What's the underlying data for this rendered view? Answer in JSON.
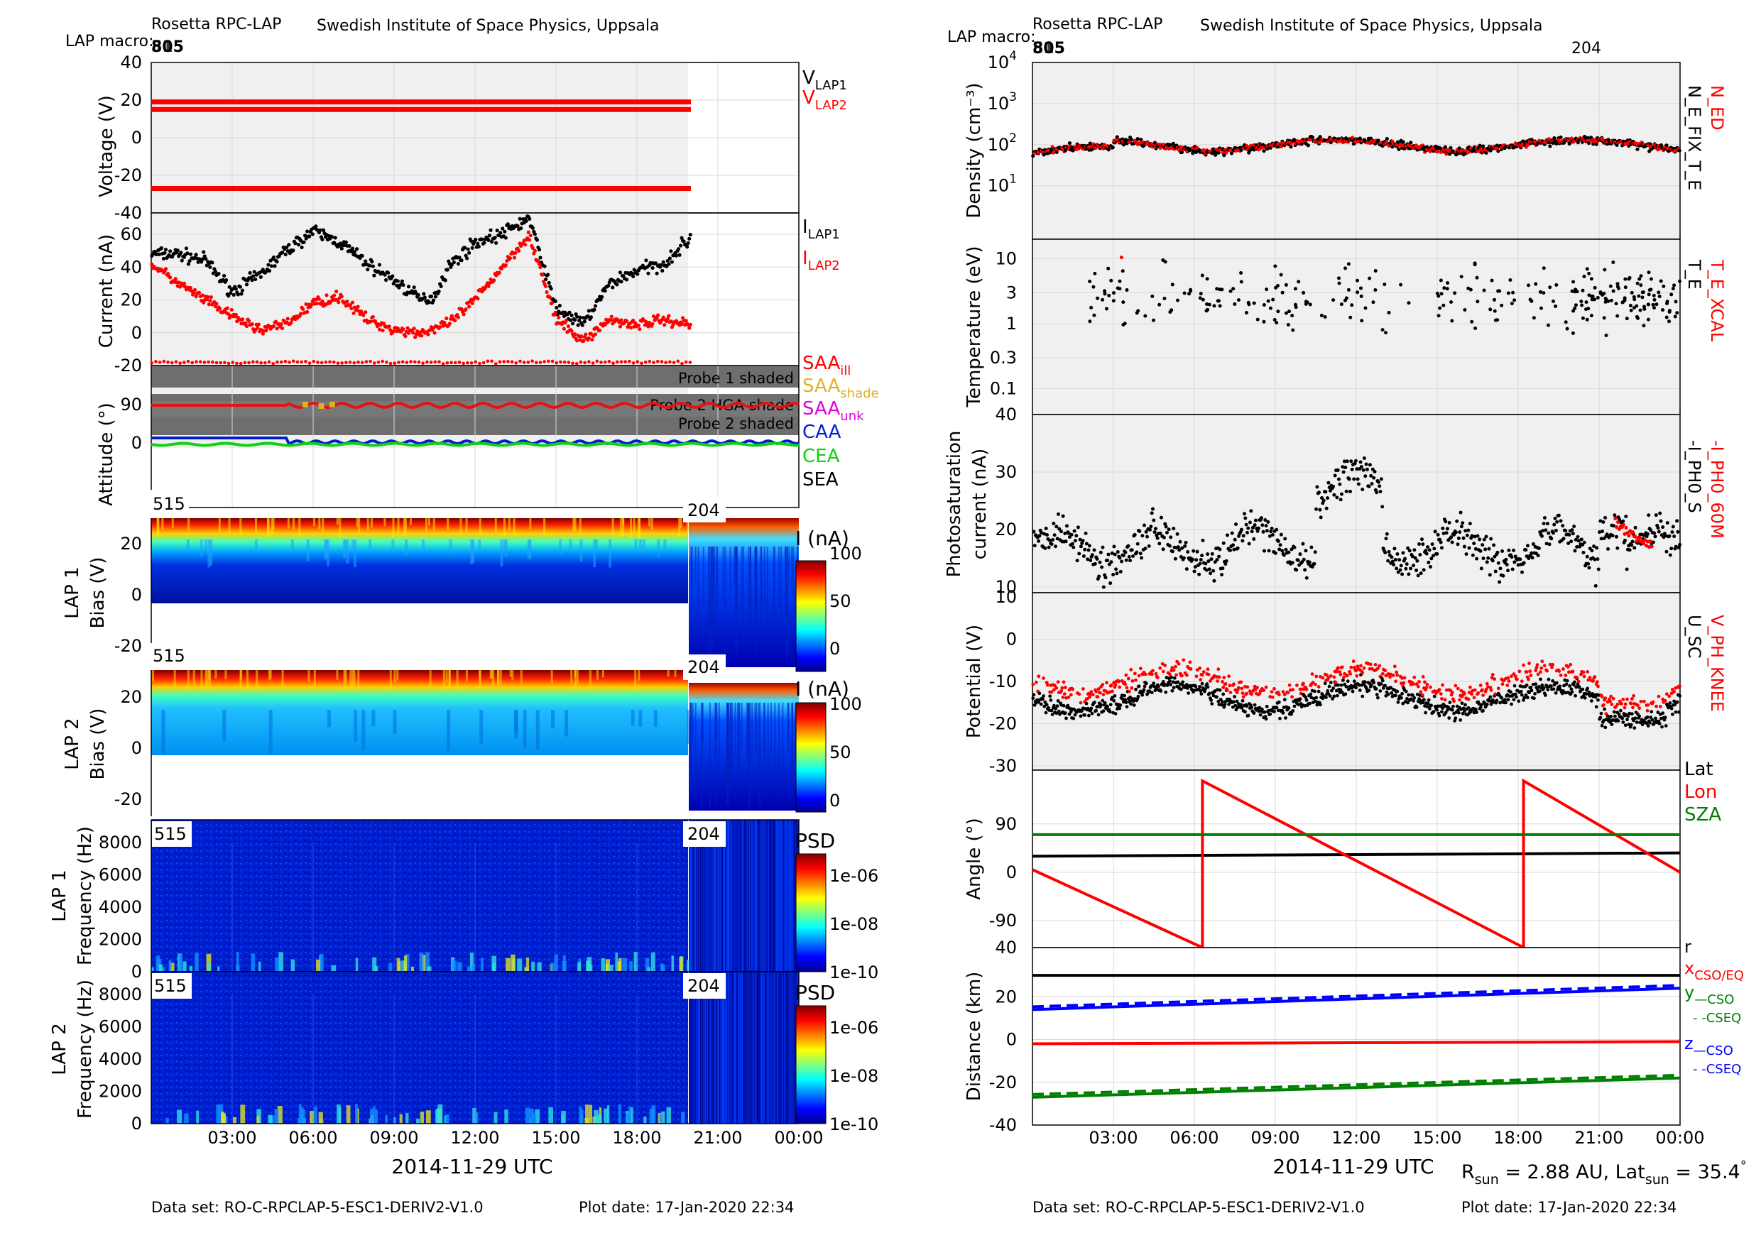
{
  "left": {
    "header": {
      "instrument": "Rosetta RPC-LAP",
      "institute": "Swedish Institute of Space Physics, Uppsala",
      "macro_label": "LAP macro:",
      "macro_values": "80⁄15",
      "macro_a": "805",
      "macro_b": "515"
    },
    "xlabel": "2014-11-29 UTC",
    "xticks": [
      "03:00",
      "06:00",
      "09:00",
      "12:00",
      "15:00",
      "18:00",
      "21:00",
      "00:00"
    ],
    "footer_dataset": "Data set: RO-C-RPCLAP-5-ESC1-DERIV2-V1.0",
    "footer_plotdate": "Plot date: 17-Jan-2020 22:34",
    "panels": {
      "voltage": {
        "ylabel": "Voltage (V)",
        "yticks": [
          "40",
          "20",
          "0",
          "-20",
          "-40"
        ],
        "legend1": "V",
        "legend1_sub": "LAP1",
        "legend2": "V",
        "legend2_sub": "LAP2"
      },
      "current": {
        "ylabel": "Current (nA)",
        "yticks": [
          "60",
          "40",
          "20",
          "0",
          "-20"
        ],
        "legend1": "I",
        "legend1_sub": "LAP1",
        "legend2": "I",
        "legend2_sub": "LAP2"
      },
      "attitude": {
        "ylabel": "Attitude (°)",
        "yticks": [
          "90",
          "0"
        ],
        "shade1": "Probe 1 shaded",
        "shade2": "Probe 2 HGA shade",
        "shade3": "Probe 2 shaded",
        "saa_ill": "SAA",
        "saa_ill_sub": "ill",
        "saa_shade": "SAA",
        "saa_shade_sub": "shade",
        "saa_unk": "SAA",
        "saa_unk_sub": "unk",
        "caa": "CAA",
        "cea": "CEA",
        "sea": "SEA"
      },
      "bias1": {
        "ylabel1": "LAP 1",
        "ylabel2": "Bias (V)",
        "yticks": [
          "20",
          "0",
          "-20"
        ],
        "macro_left": "515",
        "macro_right": "204",
        "cbar_title": "I (nA)",
        "cbar_ticks": [
          "100",
          "50",
          "0"
        ]
      },
      "bias2": {
        "ylabel1": "LAP 2",
        "ylabel2": "Bias (V)",
        "yticks": [
          "20",
          "0",
          "-20"
        ],
        "macro_left": "515",
        "macro_right": "204",
        "cbar_title": "I (nA)",
        "cbar_ticks": [
          "100",
          "50",
          "0"
        ]
      },
      "freq1": {
        "ylabel1": "LAP 1",
        "ylabel2": "Frequency (Hz)",
        "yticks": [
          "8000",
          "6000",
          "4000",
          "2000",
          "0"
        ],
        "macro_left": "515",
        "macro_right": "204",
        "cbar_title": "PSD",
        "cbar_ticks": [
          "1e-06",
          "1e-08",
          "1e-10"
        ]
      },
      "freq2": {
        "ylabel1": "LAP 2",
        "ylabel2": "Frequency (Hz)",
        "yticks": [
          "8000",
          "6000",
          "4000",
          "2000",
          "0"
        ],
        "macro_left": "515",
        "macro_right": "204",
        "cbar_title": "PSD",
        "cbar_ticks": [
          "1e-06",
          "1e-08",
          "1e-10"
        ]
      }
    }
  },
  "right": {
    "header": {
      "instrument": "Rosetta RPC-LAP",
      "institute": "Swedish Institute of Space Physics, Uppsala",
      "macro_label": "LAP macro:",
      "macro_a": "805",
      "macro_b": "515",
      "macro_right": "204"
    },
    "xlabel": "2014-11-29 UTC",
    "xticks": [
      "03:00",
      "06:00",
      "09:00",
      "12:00",
      "15:00",
      "18:00",
      "21:00",
      "00:00"
    ],
    "footer_dataset": "Data set: RO-C-RPCLAP-5-ESC1-DERIV2-V1.0",
    "footer_plotdate": "Plot date: 17-Jan-2020 22:34",
    "rsun_text": "R",
    "rsun_sub": "sun",
    "rsun_value": " = 2.88 AU, Lat",
    "lat_sub": "sun",
    "lat_value": " = 35.4",
    "lat_deg": "°",
    "panels": {
      "density": {
        "ylabel": "Density (cm⁻³)",
        "yticks_base": "10",
        "yticks_exp": [
          "4",
          "3",
          "2",
          "1"
        ],
        "label_red": "N_ED",
        "label_black": "N_E_FIX_T_E"
      },
      "temperature": {
        "ylabel": "Temperature (eV)",
        "yticks": [
          "10",
          "3",
          "1",
          "0.3",
          "0.1"
        ],
        "label_red": "T_E_XCAL",
        "label_black": "T_E"
      },
      "photosat": {
        "ylabel1": "Photosaturation",
        "ylabel2": "current (nA)",
        "yticks": [
          "40",
          "30",
          "20",
          "10"
        ],
        "label_red": "-I_PH0_60M",
        "label_black": "-I_PH0_S"
      },
      "potential": {
        "ylabel": "Potential (V)",
        "yticks": [
          "10",
          "0",
          "-10",
          "-20",
          "-30"
        ],
        "label_red": "V_PH_KNEE",
        "label_black": "U_SC"
      },
      "angle": {
        "ylabel": "Angle (°)",
        "yticks": [
          "90",
          "0",
          "-90",
          "40"
        ],
        "lat": "Lat",
        "lon": "Lon",
        "sza": "SZA"
      },
      "distance": {
        "ylabel": "Distance (km)",
        "yticks": [
          "20",
          "0",
          "-20",
          "-40"
        ],
        "r": "r",
        "x": "x",
        "x_sub": "CSO/EQ",
        "y": "y",
        "y_sub": "—CSO",
        "y_sub2": "- -CSEQ",
        "z": "z",
        "z_sub": "—CSO",
        "z_sub2": "- -CSEQ"
      }
    }
  },
  "chart_data": [
    {
      "type": "line",
      "title": "Voltage",
      "xlabel": "2014-11-29 UTC",
      "ylabel": "Voltage (V)",
      "ylim": [
        -40,
        40
      ],
      "x_range_hours": [
        0,
        24
      ],
      "series": [
        {
          "name": "V_LAP1",
          "color": "#ff0000",
          "x": [
            0,
            20
          ],
          "y": [
            19,
            19
          ]
        },
        {
          "name": "V_LAP2",
          "color": "#ff0000",
          "x": [
            0,
            20
          ],
          "y": [
            15,
            15
          ]
        },
        {
          "name": "V_LAP2",
          "color": "#ff0000",
          "x": [
            0,
            20
          ],
          "y": [
            -27,
            -27
          ]
        }
      ]
    },
    {
      "type": "scatter",
      "title": "Current",
      "xlabel": "2014-11-29 UTC",
      "ylabel": "Current (nA)",
      "ylim": [
        -20,
        75
      ],
      "series": [
        {
          "name": "I_LAP1",
          "color": "#000000",
          "x": [
            0,
            1,
            2,
            3,
            4,
            5,
            6,
            7,
            8,
            9,
            10,
            10.5,
            11,
            12,
            13,
            14,
            15,
            16,
            17,
            18,
            19,
            20
          ],
          "y": [
            48,
            48,
            44,
            25,
            35,
            50,
            62,
            55,
            42,
            32,
            20,
            22,
            40,
            55,
            60,
            70,
            15,
            5,
            30,
            38,
            42,
            58
          ]
        },
        {
          "name": "I_LAP2",
          "color": "#ff0000",
          "x": [
            0,
            1,
            2,
            3,
            4,
            5,
            6,
            7,
            8,
            9,
            10,
            11,
            12,
            13,
            14,
            15,
            16,
            17,
            18,
            19,
            20
          ],
          "y": [
            42,
            30,
            20,
            10,
            2,
            5,
            18,
            22,
            8,
            2,
            0,
            5,
            20,
            40,
            60,
            8,
            -5,
            8,
            5,
            8,
            5
          ]
        }
      ]
    },
    {
      "type": "line",
      "title": "Angle",
      "xlabel": "2014-11-29 UTC",
      "ylabel": "Angle (°)",
      "series": [
        {
          "name": "Lat",
          "color": "#000000",
          "x": [
            0,
            24
          ],
          "y": [
            30,
            36
          ]
        },
        {
          "name": "Lon",
          "color": "#ff0000",
          "x": [
            0,
            6.3,
            6.3,
            18.2,
            18.2,
            24
          ],
          "y": [
            5,
            -140,
            170,
            -140,
            170,
            0
          ]
        },
        {
          "name": "SZA",
          "color": "#008000",
          "x": [
            0,
            24
          ],
          "y": [
            70,
            70
          ]
        }
      ]
    },
    {
      "type": "line",
      "title": "Distance",
      "xlabel": "2014-11-29 UTC",
      "ylabel": "Distance (km)",
      "ylim": [
        -40,
        40
      ],
      "series": [
        {
          "name": "r",
          "color": "#000000",
          "x": [
            0,
            24
          ],
          "y": [
            30,
            30
          ]
        },
        {
          "name": "x",
          "color": "#ff0000",
          "x": [
            0,
            24
          ],
          "y": [
            -2,
            -1
          ]
        },
        {
          "name": "y",
          "color": "#008000",
          "x": [
            0,
            24
          ],
          "y": [
            -27,
            -18
          ]
        },
        {
          "name": "z",
          "color": "#0000ff",
          "x": [
            0,
            24
          ],
          "y": [
            14,
            24
          ]
        }
      ]
    }
  ]
}
